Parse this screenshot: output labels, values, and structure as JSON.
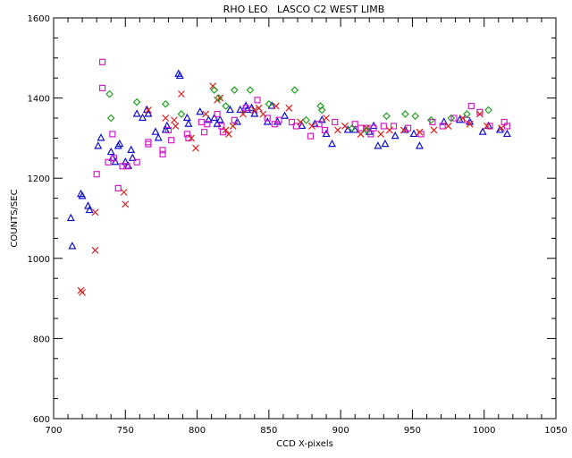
{
  "chart_data": {
    "type": "scatter",
    "title": "RHO LEO   LASCO C2 WEST LIMB",
    "xlabel": "CCD X-pixels",
    "ylabel": "COUNTS/SEC",
    "xlim": [
      700,
      1050
    ],
    "ylim": [
      600,
      1600
    ],
    "x_ticks": [
      700,
      750,
      800,
      850,
      900,
      950,
      1000,
      1050
    ],
    "y_ticks": [
      600,
      800,
      1000,
      1200,
      1400,
      1600
    ],
    "x_minor_step": 10,
    "y_minor_step": 50,
    "grid": false,
    "colors": {
      "triangle": "#1010c8",
      "square": "#d020c8",
      "cross": "#d82020",
      "diamond": "#20a020"
    },
    "series": [
      {
        "marker": "triangle",
        "color": "#1010c8",
        "points": [
          [
            712,
            1100
          ],
          [
            713,
            1030
          ],
          [
            719,
            1160
          ],
          [
            720,
            1155
          ],
          [
            724,
            1130
          ],
          [
            725,
            1120
          ],
          [
            731,
            1280
          ],
          [
            733,
            1300
          ],
          [
            740,
            1265
          ],
          [
            741,
            1250
          ],
          [
            743,
            1240
          ],
          [
            745,
            1280
          ],
          [
            746,
            1285
          ],
          [
            750,
            1240
          ],
          [
            752,
            1230
          ],
          [
            754,
            1270
          ],
          [
            755,
            1250
          ],
          [
            758,
            1360
          ],
          [
            762,
            1350
          ],
          [
            765,
            1370
          ],
          [
            766,
            1360
          ],
          [
            771,
            1315
          ],
          [
            773,
            1300
          ],
          [
            778,
            1320
          ],
          [
            779,
            1330
          ],
          [
            787,
            1460
          ],
          [
            788,
            1455
          ],
          [
            793,
            1350
          ],
          [
            794,
            1335
          ],
          [
            802,
            1365
          ],
          [
            808,
            1345
          ],
          [
            812,
            1350
          ],
          [
            814,
            1335
          ],
          [
            816,
            1345
          ],
          [
            823,
            1370
          ],
          [
            828,
            1340
          ],
          [
            830,
            1370
          ],
          [
            834,
            1380
          ],
          [
            835,
            1370
          ],
          [
            838,
            1375
          ],
          [
            840,
            1360
          ],
          [
            849,
            1340
          ],
          [
            852,
            1380
          ],
          [
            856,
            1340
          ],
          [
            861,
            1355
          ],
          [
            873,
            1330
          ],
          [
            882,
            1335
          ],
          [
            887,
            1345
          ],
          [
            890,
            1310
          ],
          [
            894,
            1285
          ],
          [
            905,
            1320
          ],
          [
            910,
            1320
          ],
          [
            920,
            1315
          ],
          [
            923,
            1330
          ],
          [
            926,
            1280
          ],
          [
            931,
            1285
          ],
          [
            938,
            1305
          ],
          [
            945,
            1320
          ],
          [
            951,
            1310
          ],
          [
            955,
            1280
          ],
          [
            972,
            1340
          ],
          [
            983,
            1345
          ],
          [
            990,
            1340
          ],
          [
            999,
            1315
          ],
          [
            1003,
            1330
          ],
          [
            1011,
            1320
          ],
          [
            1016,
            1310
          ]
        ]
      },
      {
        "marker": "square",
        "color": "#d020c8",
        "points": [
          [
            730,
            1210
          ],
          [
            734,
            1490
          ],
          [
            734,
            1425
          ],
          [
            738,
            1240
          ],
          [
            741,
            1310
          ],
          [
            742,
            1250
          ],
          [
            745,
            1175
          ],
          [
            748,
            1230
          ],
          [
            751,
            1230
          ],
          [
            758,
            1240
          ],
          [
            766,
            1290
          ],
          [
            766,
            1285
          ],
          [
            776,
            1270
          ],
          [
            776,
            1260
          ],
          [
            780,
            1320
          ],
          [
            782,
            1295
          ],
          [
            793,
            1310
          ],
          [
            794,
            1300
          ],
          [
            803,
            1340
          ],
          [
            805,
            1315
          ],
          [
            807,
            1335
          ],
          [
            814,
            1360
          ],
          [
            817,
            1330
          ],
          [
            818,
            1315
          ],
          [
            826,
            1345
          ],
          [
            834,
            1375
          ],
          [
            842,
            1395
          ],
          [
            849,
            1350
          ],
          [
            854,
            1335
          ],
          [
            857,
            1345
          ],
          [
            866,
            1340
          ],
          [
            869,
            1330
          ],
          [
            879,
            1305
          ],
          [
            885,
            1335
          ],
          [
            889,
            1320
          ],
          [
            896,
            1340
          ],
          [
            910,
            1335
          ],
          [
            914,
            1325
          ],
          [
            918,
            1325
          ],
          [
            921,
            1310
          ],
          [
            923,
            1325
          ],
          [
            930,
            1330
          ],
          [
            937,
            1330
          ],
          [
            947,
            1325
          ],
          [
            956,
            1310
          ],
          [
            964,
            1340
          ],
          [
            971,
            1330
          ],
          [
            979,
            1350
          ],
          [
            988,
            1345
          ],
          [
            991,
            1380
          ],
          [
            997,
            1365
          ],
          [
            1004,
            1330
          ],
          [
            1014,
            1340
          ],
          [
            1016,
            1330
          ]
        ]
      },
      {
        "marker": "cross",
        "color": "#d82020",
        "points": [
          [
            719,
            920
          ],
          [
            720,
            915
          ],
          [
            729,
            1115
          ],
          [
            729,
            1020
          ],
          [
            749,
            1165
          ],
          [
            750,
            1135
          ],
          [
            766,
            1370
          ],
          [
            778,
            1350
          ],
          [
            784,
            1345
          ],
          [
            785,
            1330
          ],
          [
            789,
            1410
          ],
          [
            796,
            1300
          ],
          [
            799,
            1275
          ],
          [
            806,
            1360
          ],
          [
            811,
            1430
          ],
          [
            814,
            1395
          ],
          [
            816,
            1400
          ],
          [
            820,
            1320
          ],
          [
            822,
            1310
          ],
          [
            825,
            1330
          ],
          [
            832,
            1360
          ],
          [
            840,
            1370
          ],
          [
            843,
            1375
          ],
          [
            846,
            1360
          ],
          [
            855,
            1380
          ],
          [
            864,
            1375
          ],
          [
            872,
            1340
          ],
          [
            880,
            1330
          ],
          [
            890,
            1350
          ],
          [
            898,
            1320
          ],
          [
            903,
            1330
          ],
          [
            914,
            1310
          ],
          [
            918,
            1325
          ],
          [
            928,
            1310
          ],
          [
            934,
            1320
          ],
          [
            944,
            1320
          ],
          [
            955,
            1315
          ],
          [
            965,
            1320
          ],
          [
            975,
            1330
          ],
          [
            985,
            1350
          ],
          [
            990,
            1335
          ],
          [
            997,
            1360
          ],
          [
            1002,
            1330
          ],
          [
            1012,
            1325
          ]
        ]
      },
      {
        "marker": "diamond",
        "color": "#20a020",
        "points": [
          [
            739,
            1410
          ],
          [
            740,
            1350
          ],
          [
            758,
            1390
          ],
          [
            778,
            1385
          ],
          [
            789,
            1360
          ],
          [
            812,
            1420
          ],
          [
            815,
            1400
          ],
          [
            820,
            1380
          ],
          [
            826,
            1420
          ],
          [
            837,
            1420
          ],
          [
            850,
            1385
          ],
          [
            868,
            1420
          ],
          [
            876,
            1345
          ],
          [
            886,
            1380
          ],
          [
            887,
            1370
          ],
          [
            908,
            1325
          ],
          [
            918,
            1320
          ],
          [
            932,
            1355
          ],
          [
            945,
            1360
          ],
          [
            952,
            1355
          ],
          [
            963,
            1345
          ],
          [
            977,
            1350
          ],
          [
            988,
            1360
          ],
          [
            1003,
            1370
          ]
        ]
      }
    ]
  }
}
